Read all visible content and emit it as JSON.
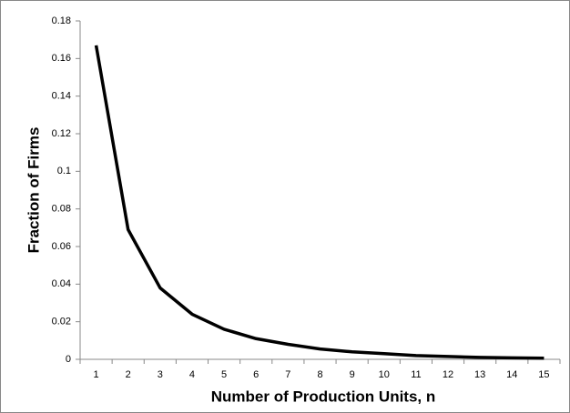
{
  "chart_data": {
    "type": "line",
    "x_label": "Number of Production Units, n",
    "y_label": "Fraction of Firms",
    "categories": [
      "1",
      "2",
      "3",
      "4",
      "5",
      "6",
      "7",
      "8",
      "9",
      "10",
      "11",
      "12",
      "13",
      "14",
      "15"
    ],
    "values": [
      0.167,
      0.069,
      0.038,
      0.024,
      0.016,
      0.011,
      0.008,
      0.0055,
      0.004,
      0.003,
      0.002,
      0.0015,
      0.001,
      0.0008,
      0.0006
    ],
    "color": "#000000",
    "ylim": [
      0,
      0.18
    ],
    "yticks": [
      0,
      0.02,
      0.04,
      0.06,
      0.08,
      0.1,
      0.12,
      0.14,
      0.16,
      0.18
    ],
    "grid": false
  }
}
